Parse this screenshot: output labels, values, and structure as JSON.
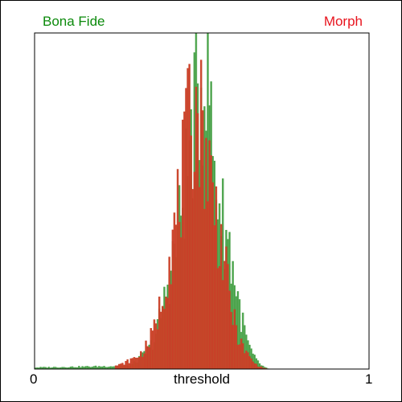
{
  "chart_data": {
    "type": "bar",
    "xlabel": "threshold",
    "ylabel": "",
    "xlim": [
      0,
      1
    ],
    "x_ticks": [
      "0",
      "1"
    ],
    "bins": 200,
    "grid": false,
    "legend_placement": "top, split left/right",
    "series": [
      {
        "name": "Bona Fide",
        "color": "#0b8a0b",
        "fill": "#59a959",
        "values": [
          {
            "x": 0.0,
            "y": 0.005
          },
          {
            "x": 0.28,
            "y": 0.01
          },
          {
            "x": 0.3,
            "y": 0.02
          },
          {
            "x": 0.32,
            "y": 0.04
          },
          {
            "x": 0.34,
            "y": 0.06
          },
          {
            "x": 0.36,
            "y": 0.1
          },
          {
            "x": 0.38,
            "y": 0.18
          },
          {
            "x": 0.4,
            "y": 0.28
          },
          {
            "x": 0.42,
            "y": 0.38
          },
          {
            "x": 0.44,
            "y": 0.5
          },
          {
            "x": 0.46,
            "y": 0.66
          },
          {
            "x": 0.48,
            "y": 0.8
          },
          {
            "x": 0.5,
            "y": 0.9
          },
          {
            "x": 0.51,
            "y": 0.93
          },
          {
            "x": 0.52,
            "y": 0.99
          },
          {
            "x": 0.53,
            "y": 0.7
          },
          {
            "x": 0.54,
            "y": 0.6
          },
          {
            "x": 0.56,
            "y": 0.48
          },
          {
            "x": 0.58,
            "y": 0.4
          },
          {
            "x": 0.6,
            "y": 0.27
          },
          {
            "x": 0.62,
            "y": 0.15
          },
          {
            "x": 0.64,
            "y": 0.07
          },
          {
            "x": 0.66,
            "y": 0.03
          },
          {
            "x": 0.68,
            "y": 0.01
          },
          {
            "x": 0.7,
            "y": 0.0
          }
        ]
      },
      {
        "name": "Morph",
        "color": "#e8141e",
        "fill": "#c44a2a",
        "values": [
          {
            "x": 0.24,
            "y": 0.01
          },
          {
            "x": 0.26,
            "y": 0.015
          },
          {
            "x": 0.28,
            "y": 0.025
          },
          {
            "x": 0.3,
            "y": 0.035
          },
          {
            "x": 0.32,
            "y": 0.05
          },
          {
            "x": 0.34,
            "y": 0.08
          },
          {
            "x": 0.36,
            "y": 0.13
          },
          {
            "x": 0.38,
            "y": 0.22
          },
          {
            "x": 0.4,
            "y": 0.34
          },
          {
            "x": 0.42,
            "y": 0.44
          },
          {
            "x": 0.44,
            "y": 0.58
          },
          {
            "x": 0.46,
            "y": 0.74
          },
          {
            "x": 0.48,
            "y": 0.83
          },
          {
            "x": 0.5,
            "y": 0.76
          },
          {
            "x": 0.52,
            "y": 0.64
          },
          {
            "x": 0.54,
            "y": 0.5
          },
          {
            "x": 0.56,
            "y": 0.38
          },
          {
            "x": 0.58,
            "y": 0.24
          },
          {
            "x": 0.6,
            "y": 0.13
          },
          {
            "x": 0.62,
            "y": 0.07
          },
          {
            "x": 0.64,
            "y": 0.04
          },
          {
            "x": 0.66,
            "y": 0.015
          },
          {
            "x": 0.68,
            "y": 0.005
          },
          {
            "x": 0.7,
            "y": 0.0
          }
        ]
      }
    ]
  }
}
